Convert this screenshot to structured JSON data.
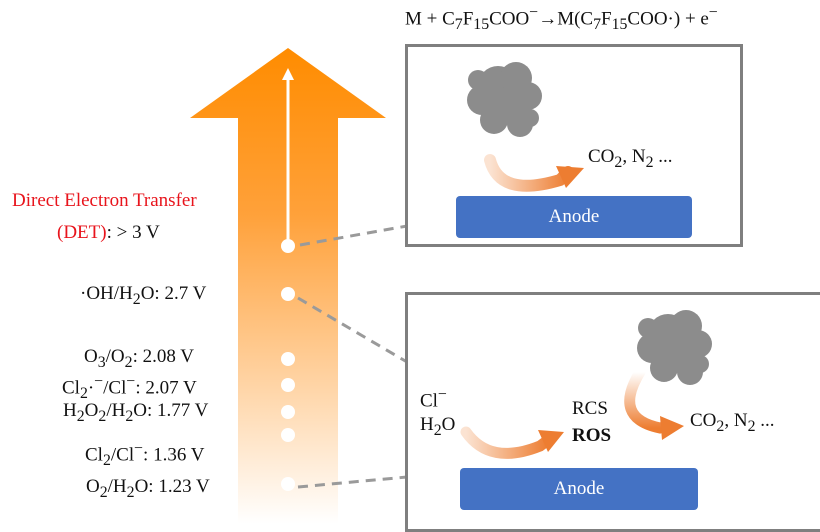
{
  "equation": {
    "lhs_m": "M + C",
    "sub7": "7",
    "f": "F",
    "sub15": "15",
    "coo": "COO",
    "sup_minus": "−",
    "arrow": "→M(C",
    "sub7b": "7",
    "fb": "F",
    "sub15b": "15",
    "coo_radical": "COO·) + e",
    "sup_minus_b": "−"
  },
  "det": {
    "line1": "Direct Electron Transfer",
    "line2_red": "(DET)",
    "line2_rest": ": > 3 V"
  },
  "potentials": {
    "oh": {
      "pre": "·OH/H",
      "sub": "2",
      "post": "O: 2.7 V"
    },
    "o3": {
      "a": "O",
      "a_sub": "3",
      "b": "/O",
      "b_sub": "2",
      "post": ": 2.08 V"
    },
    "cl2rad": {
      "a": "Cl",
      "a_sub": "2",
      "b": "·",
      "b_sup": "−",
      "c": "/Cl",
      "c_sup": "−",
      "post": ": 2.07 V"
    },
    "h2o2": {
      "a": "H",
      "a_sub": "2",
      "b": "O",
      "b_sub": "2",
      "c": "/H",
      "c_sub": "2",
      "post": "O: 1.77 V"
    },
    "cl2": {
      "a": "Cl",
      "a_sub": "2",
      "b": "/Cl",
      "b_sup": "−",
      "post": ": 1.36 V"
    },
    "o2": {
      "a": "O",
      "a_sub": "2",
      "b": "/H",
      "b_sub": "2",
      "post": "O: 1.23 V"
    }
  },
  "top_box": {
    "products_pre": "CO",
    "products_sub": "2",
    "products_mid": ", N",
    "products_sub2": "2",
    "products_post": " ...",
    "anode": "Anode"
  },
  "bottom_box": {
    "cl": "Cl",
    "cl_sup": "−",
    "h2o_pre": "H",
    "h2o_sub": "2",
    "h2o_post": "O",
    "rcs": "RCS",
    "ros": "ROS",
    "products_pre": "CO",
    "products_sub": "2",
    "products_mid": ", N",
    "products_sub2": "2",
    "products_post": " ...",
    "anode": "Anode"
  },
  "colors": {
    "arrow_top": "#ff8c00",
    "arrow_bottom": "#ffffff",
    "det_red": "#e8141c",
    "anode_blue": "#4472c4",
    "box_border": "#7f7f7f",
    "pollutant_gray": "#8c8c8c"
  }
}
